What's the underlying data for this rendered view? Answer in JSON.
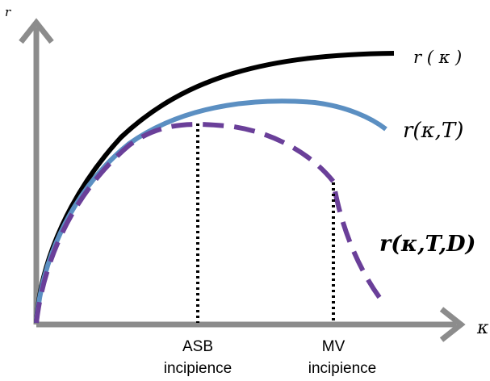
{
  "axes": {
    "y_label": "r",
    "x_label": "κ",
    "axis_color": "#8c8c8c"
  },
  "curves": [
    {
      "id": "r_kappa",
      "label": "r ( κ )",
      "color": "#000000",
      "style": "solid"
    },
    {
      "id": "r_kappa_T",
      "label": "r(κ,T)",
      "color": "#5b8fc2",
      "style": "solid"
    },
    {
      "id": "r_kappa_T_D",
      "label": "r(κ,T,D)",
      "color": "#6a3f99",
      "style": "dashed"
    }
  ],
  "markers": [
    {
      "id": "asb",
      "line1": "ASB",
      "line2": "incipience"
    },
    {
      "id": "mv",
      "line1": "MV",
      "line2": "incipience"
    }
  ]
}
